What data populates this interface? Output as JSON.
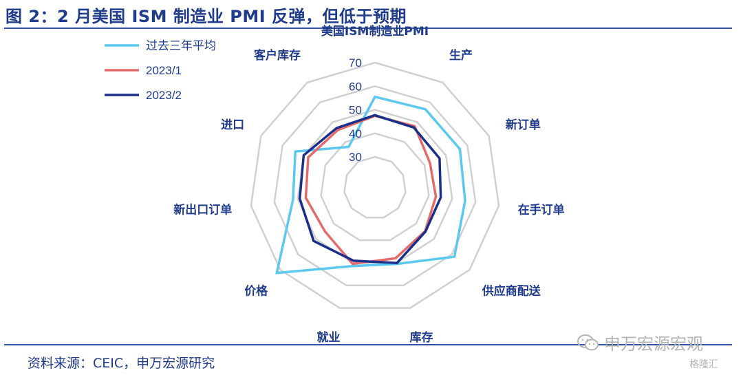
{
  "figure": {
    "title": "图 2：2 月美国 ISM 制造业 PMI 反弹，但低于预期",
    "source": "资料来源：CEIC，申万宏源研究",
    "watermark": "申万宏源宏观",
    "watermark_sub": "格隆汇",
    "watermark_icon": "wechat-icon"
  },
  "colors": {
    "series_1": "#5bc8f0",
    "series_2": "#e36b6b",
    "series_3": "#1a2f8a",
    "grid": "#d0d0d0",
    "text": "#1f3b8c"
  },
  "chart_data": {
    "type": "radar",
    "title": "",
    "categories": [
      "美国ISM制造业PMI",
      "生产",
      "新订单",
      "在手订单",
      "供应商配送",
      "库存",
      "就业",
      "价格",
      "新出口订单",
      "进口",
      "客户库存"
    ],
    "rlim": [
      30,
      70
    ],
    "ticks": [
      30,
      40,
      50,
      60,
      70
    ],
    "series": [
      {
        "name": "过去三年平均",
        "values": [
          55.5,
          56.5,
          56.5,
          55.5,
          61.5,
          50.5,
          51.5,
          72.0,
          52.0,
          54.0,
          37.5
        ]
      },
      {
        "name": "2023/1",
        "values": [
          47.4,
          48.0,
          42.5,
          43.0,
          45.0,
          48.0,
          50.5,
          45.0,
          46.5,
          48.0,
          46.0
        ]
      },
      {
        "name": "2023/2",
        "values": [
          47.7,
          47.3,
          47.0,
          45.1,
          45.2,
          50.1,
          49.1,
          51.3,
          49.1,
          50.1,
          47.0
        ]
      }
    ],
    "grid": true,
    "legend_position": "top-left"
  }
}
